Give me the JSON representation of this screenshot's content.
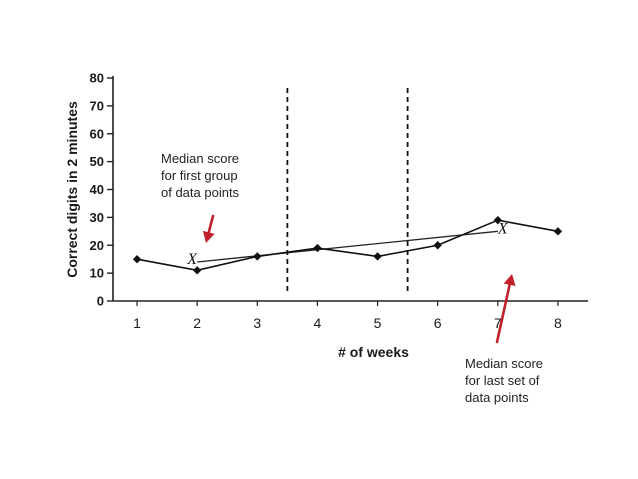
{
  "chart_data": {
    "type": "line",
    "xlabel": "# of weeks",
    "ylabel": "Correct digits in 2 minutes",
    "x": [
      1,
      2,
      3,
      4,
      5,
      6,
      7,
      8
    ],
    "xlim": [
      0.6,
      8.5
    ],
    "ylim": [
      0,
      80
    ],
    "xticks": [
      "1",
      "2",
      "3",
      "4",
      "5",
      "6",
      "7",
      "8"
    ],
    "yticks": [
      "0",
      "10",
      "20",
      "30",
      "40",
      "50",
      "60",
      "70",
      "80"
    ],
    "grid": false,
    "series": [
      {
        "values": [
          15,
          11,
          16,
          19,
          16,
          20,
          29,
          25
        ]
      }
    ],
    "median_line": {
      "x": [
        2,
        7
      ],
      "y": [
        14,
        25
      ],
      "marker": "X"
    },
    "phase_lines_x": [
      3.5,
      5.5
    ],
    "colors": {
      "data": "#111111",
      "axis": "#222222",
      "arrow": "#c0202a"
    }
  },
  "annotations": {
    "first_group": "Median score\nfor first group\nof data points",
    "last_set": "Median score\nfor last set of\ndata points"
  }
}
